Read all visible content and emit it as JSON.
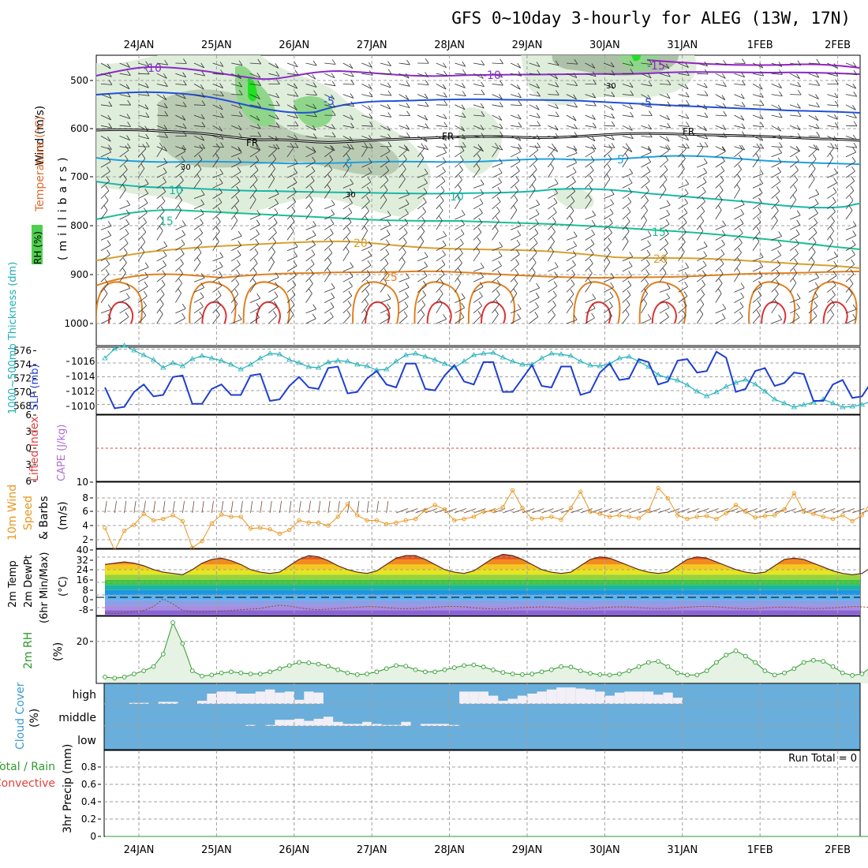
{
  "title": "GFS 0~10day 3-hourly for ALEG (13W, 17N)",
  "dates": [
    "24JAN",
    "25JAN",
    "26JAN",
    "27JAN",
    "28JAN",
    "29JAN",
    "30JAN",
    "31JAN",
    "1FEB",
    "2FEB"
  ],
  "colors": {
    "grid": "#a0a0a0",
    "thickness": "#20b0b8",
    "slp": "#1f3fd0",
    "wind_speed": "#e8961e",
    "rh2m": "#2e9a2e",
    "cloud": "#6aaedb",
    "cloud_clear": "#f2eff6",
    "lifted_index": "#e04040"
  },
  "panels": {
    "upper_air": {
      "ylabel_wind": "Wind (m/s)",
      "ylabel_temp": "Temperature (°C)",
      "ylabel_rh": "RH (%)",
      "ylabel_units": "(millibars)",
      "yticks": [
        "500",
        "600",
        "700",
        "800",
        "900",
        "1000"
      ],
      "freezing_label": "FR",
      "isotherm_labels": [
        "-10",
        "-5",
        "5",
        "10",
        "15",
        "20",
        "25",
        "-10",
        "-5",
        "5",
        "10",
        "15",
        "20",
        "-15",
        "-5",
        "FR",
        "30",
        "30",
        "30"
      ]
    },
    "pressure": {
      "ylabel_thk": "1000~500mb Thickness (dm)",
      "ylabel_slp": "SLP (mb)",
      "left_ticks": [
        "576",
        "574",
        "572",
        "570",
        "568"
      ],
      "right_ticks": [
        "1016",
        "1014",
        "1012",
        "1010"
      ]
    },
    "stability": {
      "ylabel_li": "Lifted Index",
      "ylabel_cape": "CAPE (J/kg)",
      "left_ticks": [
        "6",
        "3",
        "0",
        "3",
        "6"
      ]
    },
    "wind10m": {
      "ylabel_a": "10m Wind",
      "ylabel_b": "Speed",
      "ylabel_c": "& Barbs",
      "ylabel_units": "(m/s)",
      "yticks": [
        "10",
        "8",
        "6",
        "4",
        "2"
      ]
    },
    "temp2m": {
      "ylabel_a": "2m Temp",
      "ylabel_b": "2m DewPt",
      "ylabel_c": "(6hr Min/Max)",
      "ylabel_units": "(°C)",
      "yticks": [
        "40",
        "32",
        "24",
        "16",
        "8",
        "0",
        "-8"
      ]
    },
    "rh2m": {
      "ylabel": "2m RH",
      "ylabel_units": "(%)",
      "yticks": [
        "20"
      ]
    },
    "cloud": {
      "ylabel": "Cloud Cover",
      "ylabel_units": "(%)",
      "levels": [
        "high",
        "middle",
        "low"
      ]
    },
    "precip": {
      "ylabel_a": "Total / Rain",
      "ylabel_b": "Convective",
      "ylabel_units": "3hr Precip (mm)",
      "yticks": [
        "0.8",
        "0.6",
        "0.4",
        "0.2",
        "0"
      ],
      "run_total": "Run Total = 0"
    }
  },
  "chart_data": [
    {
      "type": "line",
      "name": "thickness",
      "x_unit": "3-hourly steps from 23JAN 12UTC",
      "ylabel": "1000~500mb Thickness (dm)",
      "ylim": [
        567.5,
        576
      ],
      "values": [
        574.6,
        575.8,
        576.2,
        575.6,
        575.0,
        574.4,
        573.4,
        574.0,
        573.6,
        574.5,
        574.9,
        574.6,
        574.3,
        573.8,
        573.2,
        573.8,
        574.6,
        575.2,
        575.1,
        574.4,
        574.0,
        573.5,
        573.4,
        574.1,
        574.3,
        574.2,
        573.8,
        573.6,
        573.1,
        573.2,
        574.2,
        575.0,
        575.2,
        574.8,
        574.4,
        573.9,
        573.4,
        574.2,
        575.0,
        575.2,
        575.3,
        574.7,
        574.2,
        573.8,
        573.8,
        574.6,
        575.2,
        575.1,
        574.9,
        574.2,
        573.7,
        573.6,
        573.9,
        574.6,
        574.8,
        574.2,
        573.5,
        572.5,
        572.1,
        571.8,
        571.2,
        570.4,
        569.8,
        570.3,
        571.0,
        571.5,
        571.9,
        571.3,
        570.4,
        569.4,
        568.9,
        568.4,
        568.7,
        569.0,
        569.4,
        568.9,
        568.4,
        568.5,
        568.7,
        569.2,
        569.1,
        568.7,
        568.4
      ]
    },
    {
      "type": "line",
      "name": "SLP",
      "ylabel": "SLP (mb)",
      "ylim": [
        1009,
        1018
      ],
      "values": [
        1012.6,
        1009.8,
        1010.0,
        1012.0,
        1013.0,
        1011.4,
        1011.6,
        1014.0,
        1014.2,
        1010.4,
        1010.4,
        1012.4,
        1013.0,
        1011.6,
        1011.6,
        1014.2,
        1014.4,
        1010.8,
        1011.0,
        1012.8,
        1014.0,
        1012.6,
        1012.4,
        1015.2,
        1015.4,
        1011.8,
        1012.0,
        1013.8,
        1014.8,
        1013.0,
        1012.6,
        1015.8,
        1015.8,
        1012.4,
        1012.2,
        1014.2,
        1015.6,
        1013.4,
        1013.0,
        1016.0,
        1016.0,
        1012.0,
        1012.0,
        1013.8,
        1015.6,
        1012.8,
        1012.6,
        1015.4,
        1015.4,
        1011.6,
        1012.0,
        1014.6,
        1015.8,
        1013.6,
        1013.8,
        1016.4,
        1016.0,
        1013.0,
        1013.4,
        1016.2,
        1016.4,
        1014.6,
        1014.8,
        1017.4,
        1016.6,
        1012.0,
        1012.4,
        1014.8,
        1015.2,
        1012.8,
        1013.2,
        1014.6,
        1014.4,
        1010.8,
        1010.8,
        1013.0,
        1013.6,
        1011.2,
        1011.4,
        1013.4,
        1013.0,
        1012.0,
        1012.0
      ]
    },
    {
      "type": "line",
      "name": "10m wind speed",
      "ylabel": "10m Wind Speed (m/s)",
      "ylim": [
        1.5,
        10.5
      ],
      "values": [
        4.3,
        1.2,
        3.9,
        4.7,
        6.2,
        5.3,
        5.5,
        6.0,
        5.2,
        1.6,
        2.5,
        4.9,
        6.1,
        5.8,
        5.8,
        4.2,
        4.3,
        4.1,
        3.5,
        4.0,
        5.3,
        5.0,
        5.0,
        4.6,
        5.8,
        7.5,
        6.0,
        5.3,
        5.3,
        4.8,
        5.0,
        5.3,
        5.5,
        6.7,
        7.4,
        6.8,
        5.3,
        5.5,
        5.8,
        6.5,
        6.6,
        7.1,
        9.4,
        7.0,
        5.5,
        5.6,
        5.8,
        5.4,
        7.0,
        9.2,
        6.5,
        6.2,
        5.8,
        6.0,
        5.8,
        5.6,
        6.6,
        9.7,
        8.3,
        6.0,
        5.5,
        5.8,
        5.9,
        5.5,
        6.3,
        7.4,
        6.5,
        5.7,
        5.9,
        6.0,
        6.8,
        9.0,
        6.5,
        6.2,
        5.8,
        5.5,
        6.0,
        5.2,
        6.0,
        7.9,
        6.2,
        5.6,
        4.9
      ]
    },
    {
      "type": "area",
      "name": "2m temperature",
      "ylabel": "2m Temp (°C)",
      "ylim": [
        -12,
        40
      ],
      "values": [
        28,
        29,
        30,
        29,
        27,
        24,
        22,
        21,
        20,
        24,
        29,
        32,
        33,
        31,
        28,
        24,
        22,
        21,
        22,
        27,
        32,
        35,
        34,
        31,
        27,
        24,
        22,
        21,
        23,
        28,
        33,
        35,
        35,
        32,
        28,
        24,
        22,
        21,
        23,
        28,
        33,
        36,
        35,
        32,
        28,
        24,
        22,
        21,
        22,
        27,
        32,
        34,
        33,
        30,
        27,
        24,
        22,
        21,
        22,
        27,
        32,
        34,
        33,
        30,
        27,
        24,
        22,
        21,
        22,
        27,
        32,
        33,
        32,
        29,
        26,
        23,
        21,
        20,
        21,
        26,
        30,
        31,
        30
      ]
    },
    {
      "type": "line",
      "name": "2m dew point",
      "ylabel": "2m DewPt (°C)",
      "ylim": [
        -12,
        40
      ],
      "values": [
        -10,
        -10.5,
        -10,
        -9,
        -8,
        -5,
        1,
        -3,
        -8,
        -9,
        -9.5,
        -9,
        -8.5,
        -8,
        -7.5,
        -7,
        -6.5,
        -5,
        -4,
        -4.5,
        -6,
        -7,
        -7.5,
        -7,
        -6.5,
        -6,
        -5.5,
        -5,
        -5.2,
        -5.8,
        -6.4,
        -6.8,
        -6.5,
        -6,
        -5.5,
        -5,
        -4.8,
        -5.2,
        -6,
        -6.5,
        -7,
        -6.8,
        -6.2,
        -5.8,
        -5.5,
        -5.2,
        -5.5,
        -6,
        -6.6,
        -6.8,
        -6.5,
        -6,
        -5.5,
        -5.2,
        -5.4,
        -5.8,
        -6.3,
        -6.6,
        -6.5,
        -6,
        -5.5,
        -5,
        -4.8,
        -5.2,
        -5.8,
        -6.4,
        -6.8,
        -6.6,
        -6,
        -5.6,
        -5.4,
        -5.8,
        -6.2,
        -6.6,
        -6.4,
        -6,
        -5.5,
        -5,
        -5.2,
        -5.8,
        -6.2,
        -6.5,
        -6.2
      ]
    },
    {
      "type": "area",
      "name": "2m relative humidity",
      "ylabel": "2m RH (%)",
      "ylim": [
        0,
        32
      ],
      "values": [
        3,
        2.5,
        3,
        4.5,
        6,
        8,
        14,
        29,
        19,
        6,
        3.5,
        4,
        5,
        5.5,
        5,
        4.5,
        4.5,
        5.5,
        7,
        8.5,
        10,
        9.8,
        9.2,
        8.2,
        6.5,
        5,
        4.2,
        4.5,
        5.5,
        7,
        8.5,
        8.2,
        6.5,
        5.5,
        5.5,
        6.5,
        7.5,
        8.5,
        8.8,
        7.8,
        6.4,
        5.2,
        4.5,
        4.2,
        4.5,
        5.5,
        6.5,
        8,
        7.8,
        6,
        4.8,
        4.2,
        4,
        4.5,
        6,
        8,
        10,
        10.5,
        8,
        5,
        4,
        4,
        6,
        10,
        13.5,
        15.5,
        13,
        10,
        6,
        4,
        5,
        7,
        10,
        11,
        10.5,
        8,
        5,
        3.8,
        4.5,
        8,
        11.5,
        12.5,
        13
      ]
    },
    {
      "type": "bar",
      "name": "high cloud cover (%)",
      "ylabel": "Cloud Cover (%)",
      "ylim": [
        0,
        100
      ],
      "values": [
        0,
        0,
        0,
        5,
        5,
        0,
        10,
        10,
        0,
        0,
        15,
        50,
        60,
        60,
        50,
        50,
        60,
        70,
        55,
        60,
        20,
        60,
        55,
        0,
        0,
        0,
        0,
        0,
        0,
        0,
        0,
        0,
        0,
        0,
        0,
        0,
        0,
        60,
        60,
        60,
        40,
        15,
        25,
        40,
        50,
        60,
        70,
        80,
        80,
        75,
        70,
        60,
        40,
        55,
        60,
        60,
        60,
        45,
        55,
        30,
        0,
        0,
        0,
        0,
        0,
        0,
        0,
        0,
        0,
        0,
        0,
        0,
        0,
        0,
        0,
        0,
        0,
        0,
        0,
        0,
        0,
        0,
        0
      ]
    },
    {
      "type": "bar",
      "name": "middle cloud cover (%)",
      "ylabel": "Cloud Cover (%)",
      "ylim": [
        0,
        100
      ],
      "values": [
        0,
        0,
        0,
        0,
        0,
        0,
        0,
        0,
        0,
        0,
        0,
        0,
        0,
        0,
        0,
        5,
        0,
        5,
        30,
        30,
        35,
        25,
        35,
        45,
        20,
        10,
        10,
        20,
        10,
        5,
        5,
        20,
        0,
        10,
        10,
        10,
        5,
        0,
        0,
        0,
        0,
        0,
        0,
        0,
        0,
        0,
        0,
        0,
        0,
        0,
        0,
        0,
        0,
        0,
        0,
        0,
        0,
        0,
        0,
        0,
        0,
        0,
        0,
        0,
        0,
        0,
        0,
        0,
        0,
        0,
        0,
        0,
        0,
        0,
        0,
        0,
        0,
        0,
        0,
        0,
        0,
        0,
        0
      ]
    },
    {
      "type": "bar",
      "name": "mid-level cloud cover (%)",
      "ylabel": "Cloud Cover (%)",
      "ylim": [
        0,
        100
      ],
      "values": [
        0,
        0,
        0,
        0,
        0,
        0,
        0,
        0,
        0,
        0,
        0,
        0,
        0,
        0,
        0,
        0,
        0,
        0,
        0,
        0,
        0,
        0,
        0,
        0,
        0,
        0,
        0,
        0,
        0,
        0,
        0,
        0,
        0,
        0,
        0,
        0,
        0,
        0,
        0,
        0,
        0,
        0,
        0,
        0,
        0,
        0,
        0,
        0,
        0,
        0,
        0,
        0,
        0,
        0,
        0,
        0,
        0,
        0,
        0,
        0,
        0,
        0,
        0,
        0,
        0,
        0,
        0,
        0,
        0,
        0,
        0,
        0,
        0,
        0,
        0,
        0,
        0,
        0,
        0,
        0,
        0,
        0,
        0
      ]
    },
    {
      "type": "line",
      "name": "3hr precipitation (mm)",
      "ylabel": "3hr Precip (mm)",
      "ylim": [
        0,
        1.0
      ],
      "values": [
        0,
        0,
        0,
        0,
        0,
        0,
        0,
        0,
        0,
        0,
        0,
        0,
        0,
        0,
        0,
        0,
        0,
        0,
        0,
        0,
        0,
        0,
        0,
        0,
        0,
        0,
        0,
        0,
        0,
        0,
        0,
        0,
        0,
        0,
        0,
        0,
        0,
        0,
        0,
        0,
        0,
        0,
        0,
        0,
        0,
        0,
        0,
        0,
        0,
        0,
        0,
        0,
        0,
        0,
        0,
        0,
        0,
        0,
        0,
        0,
        0,
        0,
        0,
        0,
        0,
        0,
        0,
        0,
        0,
        0,
        0,
        0,
        0,
        0,
        0,
        0,
        0,
        0,
        0,
        0,
        0,
        0,
        0
      ]
    }
  ]
}
